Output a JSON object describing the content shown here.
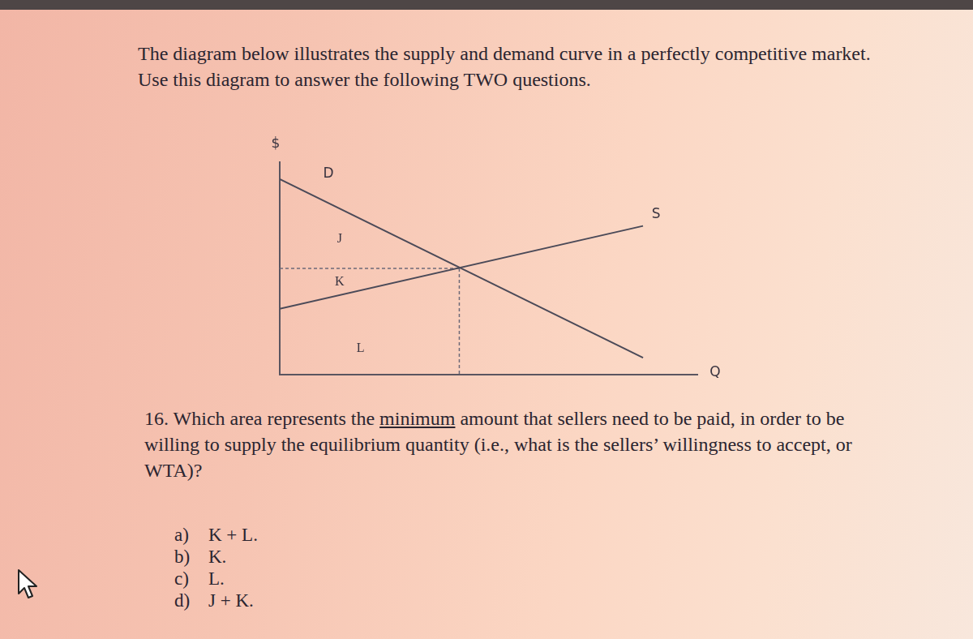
{
  "header": {
    "lines": [
      "The diagram below illustrates the supply and demand curve in a perfectly competitive market.",
      "Use this diagram to answer the following TWO questions."
    ]
  },
  "chart_data": {
    "type": "line",
    "x_label": "Q",
    "y_label": "$",
    "xlim": [
      0,
      100
    ],
    "ylim": [
      0,
      100
    ],
    "grid": false,
    "tick_labels": false,
    "series": [
      {
        "name": "D",
        "color": "#4b4a58",
        "x": [
          0,
          87
        ],
        "values": [
          92,
          8
        ]
      },
      {
        "name": "S",
        "color": "#4b4a58",
        "x": [
          0,
          87
        ],
        "values": [
          31,
          70
        ]
      }
    ],
    "equilibrium": {
      "x": 43,
      "y": 50,
      "line_style": "dashed",
      "color": "#6e6a78"
    },
    "areas": [
      "J",
      "K",
      "L"
    ]
  },
  "question": {
    "lines": [
      "16. Which area represents the minimum amount that sellers need to be paid, in order to be",
      "willing to supply the equilibrium quantity (i.e., what is the sellers’ willingness to accept, or",
      "WTA)?"
    ],
    "underlined": "minimum"
  },
  "options": [
    {
      "letter": "a)",
      "text": "K + L."
    },
    {
      "letter": "b)",
      "text": "K."
    },
    {
      "letter": "c)",
      "text": "L."
    },
    {
      "letter": "d)",
      "text": "J + K."
    }
  ]
}
